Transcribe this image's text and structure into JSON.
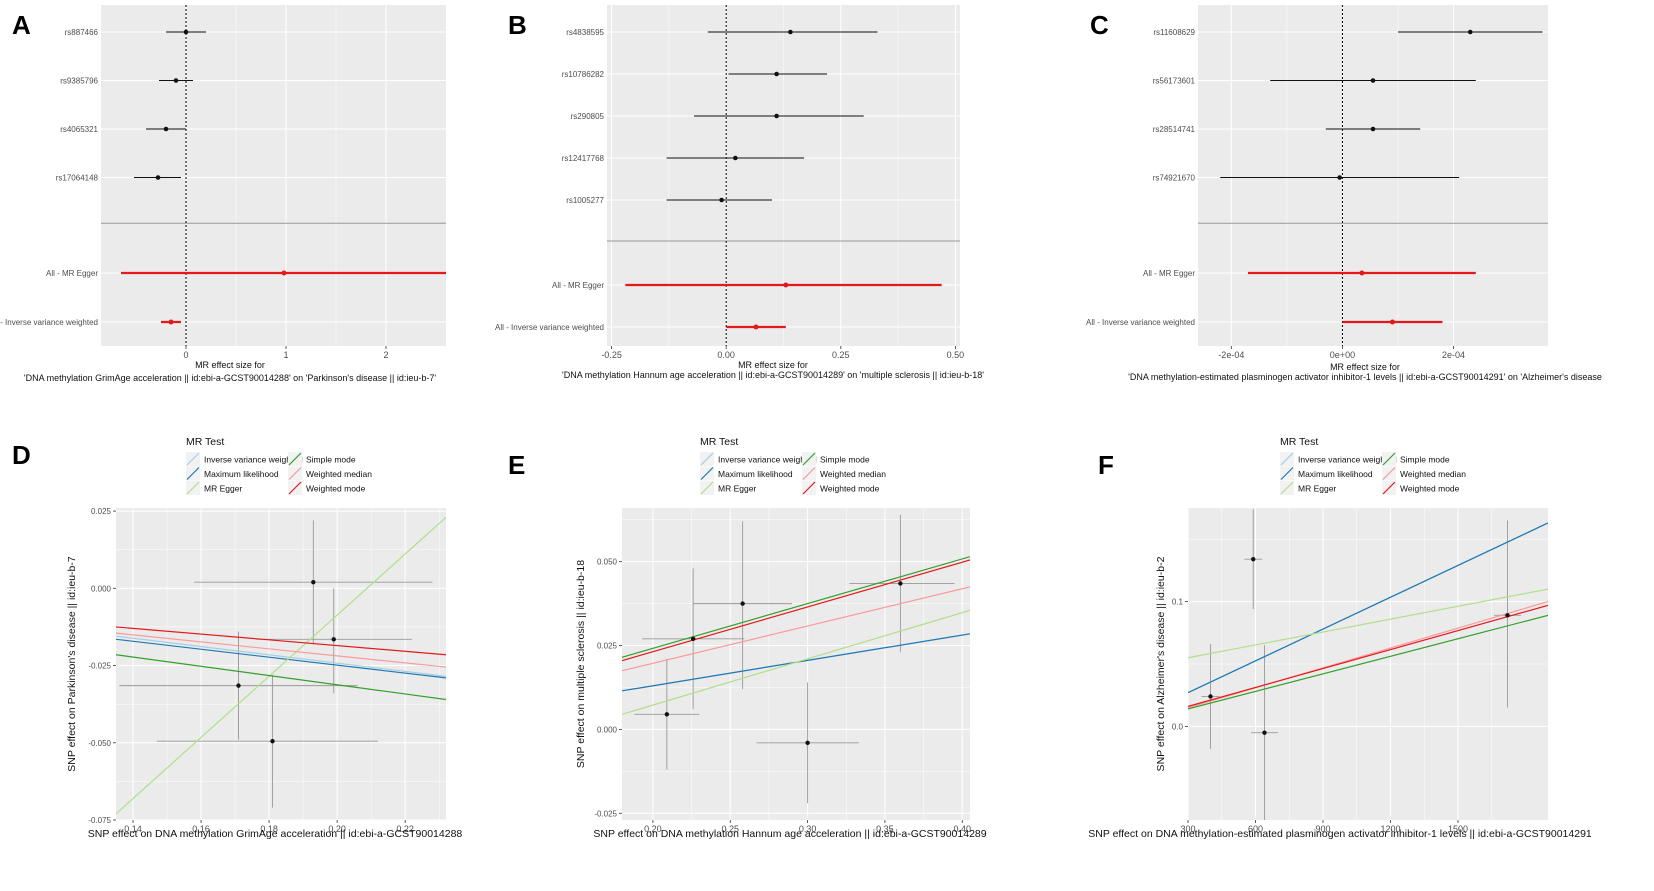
{
  "colors": {
    "panel_bg": "#ebebeb",
    "grid": "#ffffff",
    "point": "#111111",
    "ci": "#111111",
    "summary": "#e31a1c",
    "sep": "#999999",
    "ivw": "#a6cee3",
    "ml": "#1f78b4",
    "egger": "#b2df8a",
    "simple": "#33a02c",
    "wmedian": "#fb9a99",
    "wmode": "#e31a1c",
    "scatter_ci": "#999999"
  },
  "chart_data": [
    {
      "panel": "A",
      "type": "forest",
      "xlabel_line1": "MR effect size for",
      "xlabel_line2": "'DNA methylation GrimAge acceleration || id:ebi-a-GCST90014288' on 'Parkinson's disease || id:ieu-b-7'",
      "xlim": [
        -0.85,
        2.6
      ],
      "xticks": [
        0,
        1,
        2
      ],
      "xtick_labels": [
        "0",
        "1",
        "2"
      ],
      "snps": [
        {
          "label": "rs887466",
          "b": 0.0,
          "lo": -0.2,
          "hi": 0.2
        },
        {
          "label": "rs9385796",
          "b": -0.1,
          "lo": -0.27,
          "hi": 0.07
        },
        {
          "label": "rs4065321",
          "b": -0.2,
          "lo": -0.4,
          "hi": 0.0
        },
        {
          "label": "rs17064148",
          "b": -0.28,
          "lo": -0.52,
          "hi": -0.05
        }
      ],
      "summary": [
        {
          "label": "All - MR Egger",
          "b": 0.98,
          "lo": -0.65,
          "hi": 2.6
        },
        {
          "label": "All - Inverse variance weighted",
          "b": -0.15,
          "lo": -0.25,
          "hi": -0.05
        }
      ]
    },
    {
      "panel": "B",
      "type": "forest",
      "xlabel_line1": "MR effect size for",
      "xlabel_line2": "'DNA methylation Hannum age acceleration || id:ebi-a-GCST90014289' on 'multiple sclerosis || id:ieu-b-18'",
      "xlim": [
        -0.26,
        0.51
      ],
      "xticks": [
        -0.25,
        0.0,
        0.25,
        0.5
      ],
      "xtick_labels": [
        "-0.25",
        "0.00",
        "0.25",
        "0.50"
      ],
      "snps": [
        {
          "label": "rs4838595",
          "b": 0.14,
          "lo": -0.04,
          "hi": 0.33
        },
        {
          "label": "rs10786282",
          "b": 0.11,
          "lo": 0.005,
          "hi": 0.22
        },
        {
          "label": "rs290805",
          "b": 0.11,
          "lo": -0.07,
          "hi": 0.3
        },
        {
          "label": "rs12417768",
          "b": 0.02,
          "lo": -0.13,
          "hi": 0.17
        },
        {
          "label": "rs1005277",
          "b": -0.01,
          "lo": -0.13,
          "hi": 0.1
        }
      ],
      "summary": [
        {
          "label": "All - MR Egger",
          "b": 0.13,
          "lo": -0.22,
          "hi": 0.47
        },
        {
          "label": "All - Inverse variance weighted",
          "b": 0.065,
          "lo": 0.0,
          "hi": 0.13
        }
      ]
    },
    {
      "panel": "C",
      "type": "forest",
      "xlabel_line1": "MR effect size for",
      "xlabel_line2": "'DNA methylation-estimated plasminogen activator inhibitor-1 levels || id:ebi-a-GCST90014291' on 'Alzheimer's disease",
      "xlim": [
        -0.00026,
        0.00037
      ],
      "xticks": [
        -0.0002,
        0.0,
        0.0002
      ],
      "xtick_labels": [
        "-2e-04",
        "0e+00",
        "2e-04"
      ],
      "snps": [
        {
          "label": "rs11608629",
          "b": 0.00023,
          "lo": 0.0001,
          "hi": 0.00036
        },
        {
          "label": "rs56173601",
          "b": 5.5e-05,
          "lo": -0.00013,
          "hi": 0.00024
        },
        {
          "label": "rs28514741",
          "b": 5.5e-05,
          "lo": -3e-05,
          "hi": 0.00014
        },
        {
          "label": "rs74921670",
          "b": -5e-06,
          "lo": -0.00022,
          "hi": 0.00021
        }
      ],
      "summary": [
        {
          "label": "All - MR Egger",
          "b": 3.5e-05,
          "lo": -0.00017,
          "hi": 0.00024
        },
        {
          "label": "All - Inverse variance weighted",
          "b": 9e-05,
          "lo": 0.0,
          "hi": 0.00018
        }
      ]
    },
    {
      "panel": "D",
      "type": "scatter",
      "legend_title": "MR Test",
      "legend": [
        "Inverse variance weighted",
        "Maximum likelihood",
        "MR Egger",
        "Simple mode",
        "Weighted median",
        "Weighted mode"
      ],
      "xlabel": "SNP effect on DNA methylation GrimAge acceleration || id:ebi-a-GCST90014288",
      "ylabel": "SNP effect on Parkinson's disease || id:ieu-b-7",
      "xlim": [
        0.135,
        0.232
      ],
      "ylim": [
        -0.075,
        0.026
      ],
      "xticks": [
        0.14,
        0.16,
        0.18,
        0.2,
        0.22
      ],
      "xtick_labels": [
        "0.14",
        "0.16",
        "0.18",
        "0.20",
        "0.22"
      ],
      "yticks": [
        -0.075,
        -0.05,
        -0.025,
        0.0,
        0.025
      ],
      "ytick_labels": [
        "-0.075",
        "-0.050",
        "-0.025",
        "0.000",
        "0.025"
      ],
      "points": [
        {
          "x": 0.193,
          "y": 0.002,
          "xlo": 0.158,
          "xhi": 0.228,
          "ylo": -0.018,
          "yhi": 0.022
        },
        {
          "x": 0.199,
          "y": -0.0165,
          "xlo": 0.176,
          "xhi": 0.222,
          "ylo": -0.034,
          "yhi": -0.0
        },
        {
          "x": 0.171,
          "y": -0.0315,
          "xlo": 0.136,
          "xhi": 0.206,
          "ylo": -0.049,
          "yhi": -0.014
        },
        {
          "x": 0.181,
          "y": -0.0495,
          "xlo": 0.147,
          "xhi": 0.212,
          "ylo": -0.071,
          "yhi": -0.028
        }
      ],
      "lines": [
        {
          "method": "Inverse variance weighted",
          "x0": 0.135,
          "y0": -0.0155,
          "x1": 0.232,
          "y1": -0.0285
        },
        {
          "method": "Maximum likelihood",
          "x0": 0.135,
          "y0": -0.0165,
          "x1": 0.232,
          "y1": -0.029
        },
        {
          "method": "MR Egger",
          "x0": 0.135,
          "y0": -0.073,
          "x1": 0.232,
          "y1": 0.023
        },
        {
          "method": "Simple mode",
          "x0": 0.135,
          "y0": -0.0215,
          "x1": 0.232,
          "y1": -0.036
        },
        {
          "method": "Weighted median",
          "x0": 0.135,
          "y0": -0.0145,
          "x1": 0.232,
          "y1": -0.0255
        },
        {
          "method": "Weighted mode",
          "x0": 0.135,
          "y0": -0.0125,
          "x1": 0.232,
          "y1": -0.0215
        }
      ]
    },
    {
      "panel": "E",
      "type": "scatter",
      "legend_title": "MR Test",
      "legend": [
        "Inverse variance weighted",
        "Maximum likelihood",
        "MR Egger",
        "Simple mode",
        "Weighted median",
        "Weighted mode"
      ],
      "xlabel": "SNP effect on DNA methylation Hannum age acceleration || id:ebi-a-GCST90014289",
      "ylabel": "SNP effect on multiple sclerosis || id:ieu-b-18",
      "xlim": [
        0.18,
        0.405
      ],
      "ylim": [
        -0.027,
        0.066
      ],
      "xticks": [
        0.2,
        0.25,
        0.3,
        0.35,
        0.4
      ],
      "xtick_labels": [
        "0.20",
        "0.25",
        "0.30",
        "0.35",
        "0.40"
      ],
      "yticks": [
        -0.025,
        0.0,
        0.025,
        0.05
      ],
      "ytick_labels": [
        "-0.025",
        "0.000",
        "0.025",
        "0.050"
      ],
      "points": [
        {
          "x": 0.209,
          "y": 0.0045,
          "xlo": 0.188,
          "xhi": 0.23,
          "ylo": -0.012,
          "yhi": 0.021
        },
        {
          "x": 0.226,
          "y": 0.027,
          "xlo": 0.193,
          "xhi": 0.259,
          "ylo": 0.006,
          "yhi": 0.048
        },
        {
          "x": 0.258,
          "y": 0.0375,
          "xlo": 0.226,
          "xhi": 0.29,
          "ylo": 0.012,
          "yhi": 0.062
        },
        {
          "x": 0.3,
          "y": -0.004,
          "xlo": 0.267,
          "xhi": 0.333,
          "ylo": -0.022,
          "yhi": 0.014
        },
        {
          "x": 0.36,
          "y": 0.0435,
          "xlo": 0.327,
          "xhi": 0.395,
          "ylo": 0.023,
          "yhi": 0.064
        }
      ],
      "lines": [
        {
          "method": "Inverse variance weighted",
          "x0": 0.18,
          "y0": 0.0115,
          "x1": 0.405,
          "y1": 0.0285
        },
        {
          "method": "Maximum likelihood",
          "x0": 0.18,
          "y0": 0.0115,
          "x1": 0.405,
          "y1": 0.0285
        },
        {
          "method": "MR Egger",
          "x0": 0.18,
          "y0": 0.0045,
          "x1": 0.405,
          "y1": 0.0355
        },
        {
          "method": "Simple mode",
          "x0": 0.18,
          "y0": 0.0215,
          "x1": 0.405,
          "y1": 0.0515
        },
        {
          "method": "Weighted median",
          "x0": 0.18,
          "y0": 0.0175,
          "x1": 0.405,
          "y1": 0.0425
        },
        {
          "method": "Weighted mode",
          "x0": 0.18,
          "y0": 0.0205,
          "x1": 0.405,
          "y1": 0.0505
        }
      ]
    },
    {
      "panel": "F",
      "type": "scatter",
      "legend_title": "MR Test",
      "legend": [
        "Inverse variance weighted",
        "Maximum likelihood",
        "MR Egger",
        "Simple mode",
        "Weighted median",
        "Weighted mode"
      ],
      "xlabel": "SNP effect on DNA methylation-estimated plasminogen activator inhibitor-1 levels || id:ebi-a-GCST90014291",
      "ylabel": "SNP effect on Alzheimer's disease || id:ieu-b-2",
      "xlim": [
        300,
        1900
      ],
      "ylim": [
        -0.075,
        0.175
      ],
      "xticks": [
        300,
        600,
        900,
        1200,
        1500
      ],
      "xtick_labels": [
        "300",
        "600",
        "900",
        "1200",
        "1500"
      ],
      "yticks": [
        0.0,
        0.1
      ],
      "ytick_labels": [
        "0.0",
        "0.1"
      ],
      "points": [
        {
          "x": 590,
          "y": 0.134,
          "xlo": 550,
          "xhi": 630,
          "ylo": 0.094,
          "yhi": 0.174
        },
        {
          "x": 1720,
          "y": 0.089,
          "xlo": 1660,
          "xhi": 1780,
          "ylo": 0.015,
          "yhi": 0.165
        },
        {
          "x": 400,
          "y": 0.024,
          "xlo": 360,
          "xhi": 440,
          "ylo": -0.018,
          "yhi": 0.066
        },
        {
          "x": 640,
          "y": -0.005,
          "xlo": 580,
          "xhi": 700,
          "ylo": -0.075,
          "yhi": 0.065
        }
      ],
      "lines": [
        {
          "method": "Inverse variance weighted",
          "x0": 300,
          "y0": 0.027,
          "x1": 1900,
          "y1": 0.163
        },
        {
          "method": "Maximum likelihood",
          "x0": 300,
          "y0": 0.027,
          "x1": 1900,
          "y1": 0.163
        },
        {
          "method": "MR Egger",
          "x0": 300,
          "y0": 0.055,
          "x1": 1900,
          "y1": 0.11
        },
        {
          "method": "Simple mode",
          "x0": 300,
          "y0": 0.014,
          "x1": 1900,
          "y1": 0.089
        },
        {
          "method": "Weighted median",
          "x0": 300,
          "y0": 0.015,
          "x1": 1900,
          "y1": 0.1
        },
        {
          "method": "Weighted mode",
          "x0": 300,
          "y0": 0.016,
          "x1": 1900,
          "y1": 0.097
        }
      ]
    }
  ]
}
